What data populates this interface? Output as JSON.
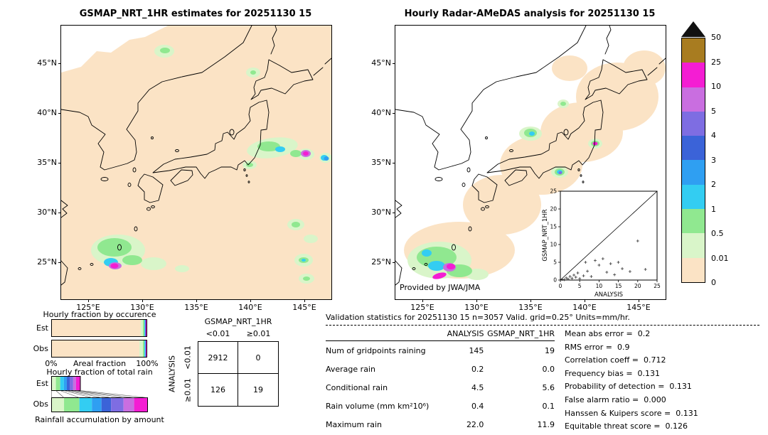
{
  "figure": {
    "kind": "precipitation-validation-figure"
  },
  "chart_data": [
    {
      "type": "map",
      "id": "gsmap-estimates",
      "title": "GSMAP_NRT_1HR estimates for 20251130 15",
      "lat_ticks": [
        "45°N",
        "40°N",
        "35°N",
        "30°N",
        "25°N"
      ],
      "lon_ticks": [
        "125°E",
        "130°E",
        "135°E",
        "140°E",
        "145°E"
      ],
      "units": "mm/hr"
    },
    {
      "type": "map",
      "id": "radar-amedas-analysis",
      "title": "Hourly Radar-AMeDAS analysis for 20251130 15",
      "lat_ticks": [
        "45°N",
        "40°N",
        "35°N",
        "30°N",
        "25°N"
      ],
      "lon_ticks": [
        "125°E",
        "130°E",
        "135°E",
        "140°E",
        "145°E"
      ],
      "credit": "Provided by JWA/JMA",
      "units": "mm/hr"
    },
    {
      "type": "colorbar",
      "units": "mm/hr",
      "levels": [
        "50",
        "25",
        "10",
        "5",
        "4",
        "3",
        "2",
        "1",
        "0.5",
        "0.01",
        "0"
      ],
      "colors": [
        "#a87c20",
        "#f41dd3",
        "#c96ee0",
        "#7e6de2",
        "#3b63d8",
        "#2f9ff2",
        "#33cdf2",
        "#90e890",
        "#d9f5c9",
        "#fbe3c5"
      ],
      "overflow_color": "#111111"
    },
    {
      "type": "bar",
      "title": "Hourly fraction by occurence",
      "orientation": "horizontal-stacked",
      "xlabel": "Areal fraction",
      "x_left_label": "0%",
      "x_right_label": "100%",
      "rows": [
        {
          "name": "Est",
          "segments": [
            {
              "color": "#fbe3c5",
              "pct": 93.8
            },
            {
              "color": "#d9f5c9",
              "pct": 2.6
            },
            {
              "color": "#90e890",
              "pct": 1.4
            },
            {
              "color": "#33cdf2",
              "pct": 0.8
            },
            {
              "color": "#3b63d8",
              "pct": 0.6
            },
            {
              "color": "#f41dd3",
              "pct": 0.8
            }
          ]
        },
        {
          "name": "Obs",
          "segments": [
            {
              "color": "#fbe3c5",
              "pct": 92.6
            },
            {
              "color": "#d9f5c9",
              "pct": 3.4
            },
            {
              "color": "#90e890",
              "pct": 1.6
            },
            {
              "color": "#33cdf2",
              "pct": 1.0
            },
            {
              "color": "#2f9ff2",
              "pct": 0.6
            },
            {
              "color": "#f41dd3",
              "pct": 0.8
            }
          ]
        }
      ]
    },
    {
      "type": "bar",
      "title": "Hourly fraction of total rain",
      "orientation": "horizontal-stacked",
      "caption": "Rainfall accumulation by amount",
      "est_total_fraction": 0.3,
      "rows": [
        {
          "name": "Est",
          "segments": [
            {
              "color": "#d9f5c9",
              "pct": 15
            },
            {
              "color": "#90e890",
              "pct": 15
            },
            {
              "color": "#33cdf2",
              "pct": 13
            },
            {
              "color": "#2f9ff2",
              "pct": 10
            },
            {
              "color": "#3b63d8",
              "pct": 10
            },
            {
              "color": "#7e6de2",
              "pct": 12
            },
            {
              "color": "#c96ee0",
              "pct": 10
            },
            {
              "color": "#f41dd3",
              "pct": 15
            }
          ]
        },
        {
          "name": "Obs",
          "segments": [
            {
              "color": "#d9f5c9",
              "pct": 13
            },
            {
              "color": "#90e890",
              "pct": 16
            },
            {
              "color": "#33cdf2",
              "pct": 13
            },
            {
              "color": "#2f9ff2",
              "pct": 10
            },
            {
              "color": "#3b63d8",
              "pct": 10
            },
            {
              "color": "#7e6de2",
              "pct": 13
            },
            {
              "color": "#c96ee0",
              "pct": 11
            },
            {
              "color": "#f41dd3",
              "pct": 14
            }
          ]
        }
      ]
    },
    {
      "type": "scatter",
      "xlabel": "ANALYSIS",
      "ylabel": "GSMAP_NRT_1HR",
      "xlim": [
        0,
        25
      ],
      "ylim": [
        0,
        25
      ],
      "tick_labels": [
        "0",
        "5",
        "10",
        "15",
        "20",
        "25"
      ],
      "diagonal": true,
      "points": [
        [
          0.5,
          0.2
        ],
        [
          1,
          0.1
        ],
        [
          1.5,
          0.6
        ],
        [
          2,
          0.3
        ],
        [
          2.5,
          1.0
        ],
        [
          3,
          0.5
        ],
        [
          3.5,
          1.4
        ],
        [
          4,
          0.8
        ],
        [
          4.5,
          2.0
        ],
        [
          5,
          0.4
        ],
        [
          6,
          1.2
        ],
        [
          6.5,
          5.0
        ],
        [
          7,
          2.5
        ],
        [
          8,
          1.0
        ],
        [
          9,
          5.5
        ],
        [
          10,
          4.2
        ],
        [
          11,
          6.0
        ],
        [
          12,
          2.2
        ],
        [
          13,
          4.6
        ],
        [
          14,
          1.5
        ],
        [
          15,
          5.0
        ],
        [
          16,
          3.2
        ],
        [
          18,
          2.4
        ],
        [
          20,
          11.0
        ],
        [
          22,
          3.0
        ]
      ]
    },
    {
      "type": "table",
      "name": "contingency",
      "col_header": "GSMAP_NRT_1HR",
      "row_header": "ANALYSIS",
      "col_labels": [
        "<0.01",
        "≥0.01"
      ],
      "row_labels": [
        "<0.01",
        "≥0.01"
      ],
      "cells": [
        [
          "2912",
          "0"
        ],
        [
          "126",
          "19"
        ]
      ]
    },
    {
      "type": "table",
      "name": "validation-statistics",
      "title": "Validation statistics for 20251130 15  n=3057 Valid. grid=0.25° Units=mm/hr.",
      "columns": [
        "ANALYSIS",
        "GSMAP_NRT_1HR"
      ],
      "rows": [
        {
          "label": "Num of gridpoints raining",
          "analysis": "145",
          "gsmap": "19"
        },
        {
          "label": "Average rain",
          "analysis": "0.2",
          "gsmap": "0.0"
        },
        {
          "label": "Conditional rain",
          "analysis": "4.5",
          "gsmap": "5.6"
        },
        {
          "label": "Rain volume (mm km²10⁶)",
          "analysis": "0.4",
          "gsmap": "0.1"
        },
        {
          "label": "Maximum rain",
          "analysis": "22.0",
          "gsmap": "11.9"
        }
      ],
      "metrics": [
        {
          "label": "Mean abs error =",
          "value": "0.2"
        },
        {
          "label": "RMS error =",
          "value": "0.9"
        },
        {
          "label": "Correlation coeff =",
          "value": "0.712"
        },
        {
          "label": "Frequency bias =",
          "value": "0.131"
        },
        {
          "label": "Probability of detection =",
          "value": "0.131"
        },
        {
          "label": "False alarm ratio =",
          "value": "0.000"
        },
        {
          "label": "Hanssen & Kuipers score =",
          "value": "0.131"
        },
        {
          "label": "Equitable threat score =",
          "value": "0.126"
        }
      ]
    }
  ]
}
